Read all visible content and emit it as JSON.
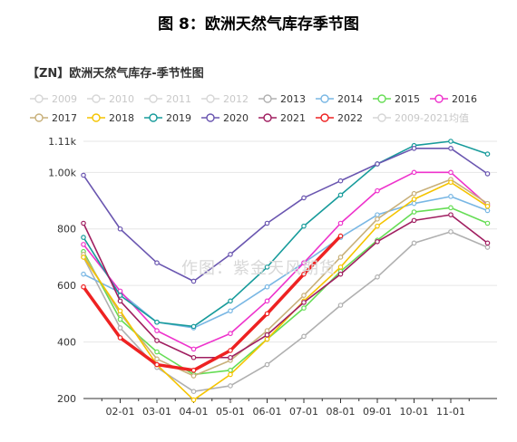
{
  "figure_title": "图 8：欧洲天然气库存季节图",
  "chart_title": "【ZN】欧洲天然气库存-季节性图",
  "watermark": "作图：紫金天风期货",
  "chart_data": {
    "type": "line",
    "x_ticks": [
      "02-01",
      "03-01",
      "04-01",
      "05-01",
      "06-01",
      "07-01",
      "08-01",
      "09-01",
      "10-01",
      "11-01"
    ],
    "y_ticks": [
      "200",
      "400",
      "600",
      "800",
      "1.00k",
      "1.11k"
    ],
    "ylim": [
      200,
      1110
    ],
    "xlim": [
      1,
      16
    ],
    "grid": true,
    "legend_position": "top",
    "series": [
      {
        "name": "2009",
        "color": "#d6d6d6",
        "disabled": true,
        "x": [],
        "y": []
      },
      {
        "name": "2010",
        "color": "#d6d6d6",
        "disabled": true,
        "x": [],
        "y": []
      },
      {
        "name": "2011",
        "color": "#d6d6d6",
        "disabled": true,
        "x": [],
        "y": []
      },
      {
        "name": "2012",
        "color": "#d6d6d6",
        "disabled": true,
        "x": [],
        "y": []
      },
      {
        "name": "2013",
        "color": "#b0b0b0",
        "x": [
          1,
          2,
          3,
          4,
          5,
          6,
          7,
          8,
          9,
          10,
          11,
          12
        ],
        "y": [
          700,
          450,
          310,
          225,
          245,
          320,
          420,
          530,
          630,
          750,
          790,
          735
        ]
      },
      {
        "name": "2014",
        "color": "#79b7e4",
        "x": [
          1,
          2,
          3,
          4,
          5,
          6,
          7,
          8,
          9,
          10,
          11,
          12
        ],
        "y": [
          640,
          575,
          470,
          450,
          510,
          595,
          680,
          770,
          850,
          890,
          915,
          865
        ]
      },
      {
        "name": "2015",
        "color": "#66dd55",
        "x": [
          1,
          2,
          3,
          4,
          5,
          6,
          7,
          8,
          9,
          10,
          11,
          12
        ],
        "y": [
          720,
          480,
          365,
          285,
          300,
          410,
          520,
          650,
          760,
          860,
          875,
          820
        ]
      },
      {
        "name": "2016",
        "color": "#ee33cc",
        "x": [
          1,
          2,
          3,
          4,
          5,
          6,
          7,
          8,
          9,
          10,
          11,
          12
        ],
        "y": [
          745,
          580,
          440,
          375,
          430,
          545,
          680,
          820,
          935,
          1000,
          1000,
          885
        ]
      },
      {
        "name": "2017",
        "color": "#c8b07a",
        "x": [
          1,
          2,
          3,
          4,
          5,
          6,
          7,
          8,
          9,
          10,
          11,
          12
        ],
        "y": [
          710,
          500,
          340,
          280,
          335,
          440,
          565,
          700,
          835,
          925,
          975,
          890
        ]
      },
      {
        "name": "2018",
        "color": "#f5c400",
        "x": [
          1,
          2,
          3,
          4,
          5,
          6,
          7,
          8,
          9,
          10,
          11,
          12
        ],
        "y": [
          700,
          510,
          320,
          195,
          285,
          410,
          545,
          665,
          810,
          905,
          965,
          880
        ]
      },
      {
        "name": "2019",
        "color": "#179b9b",
        "x": [
          1,
          2,
          3,
          4,
          5,
          6,
          7,
          8,
          9,
          10,
          11,
          12
        ],
        "y": [
          770,
          565,
          470,
          455,
          545,
          665,
          810,
          920,
          1030,
          1095,
          1110,
          1065
        ]
      },
      {
        "name": "2020",
        "color": "#6a56b0",
        "x": [
          1,
          2,
          3,
          4,
          5,
          6,
          7,
          8,
          9,
          10,
          11,
          12
        ],
        "y": [
          990,
          800,
          680,
          615,
          710,
          820,
          910,
          970,
          1030,
          1085,
          1085,
          995
        ]
      },
      {
        "name": "2021",
        "color": "#a01e60",
        "x": [
          1,
          2,
          3,
          4,
          5,
          6,
          7,
          8,
          9,
          10,
          11,
          12
        ],
        "y": [
          820,
          545,
          405,
          345,
          345,
          425,
          540,
          640,
          755,
          830,
          850,
          750
        ]
      },
      {
        "name": "2022",
        "color": "#ee2222",
        "x": [
          1,
          2,
          3,
          4,
          5,
          6,
          7,
          8
        ],
        "y": [
          595,
          415,
          320,
          300,
          370,
          500,
          640,
          775
        ]
      },
      {
        "name": "2009-2021均值",
        "color": "#d6d6d6",
        "disabled": true,
        "x": [],
        "y": []
      }
    ]
  }
}
